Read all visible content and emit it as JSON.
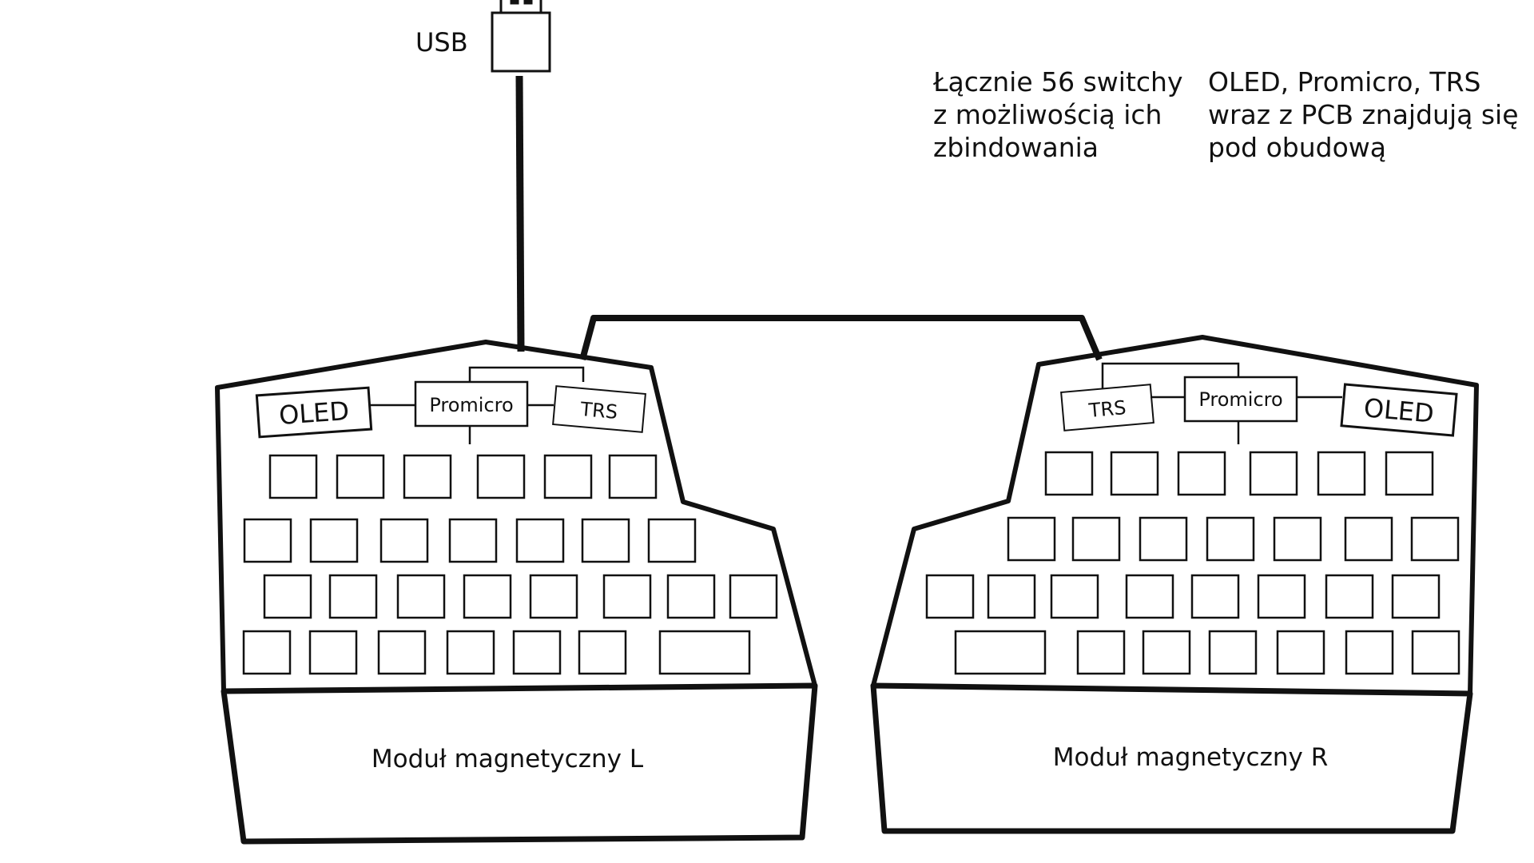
{
  "usb_label": "USB",
  "notes": {
    "switches": [
      "Łącznie 56 switchy",
      "z możliwością ich",
      "zbindowania"
    ],
    "hardware": [
      "OLED, Promicro, TRS",
      "wraz z PCB znajdują się",
      "pod obudową"
    ]
  },
  "left_half": {
    "oled": "OLED",
    "promicro": "Promicro",
    "trs": "TRS",
    "module": "Moduł magnetyczny L"
  },
  "right_half": {
    "trs": "TRS",
    "promicro": "Promicro",
    "oled": "OLED",
    "module": "Moduł magnetyczny R"
  },
  "colors": {
    "ink": "#111111",
    "paper": "#ffffff"
  }
}
